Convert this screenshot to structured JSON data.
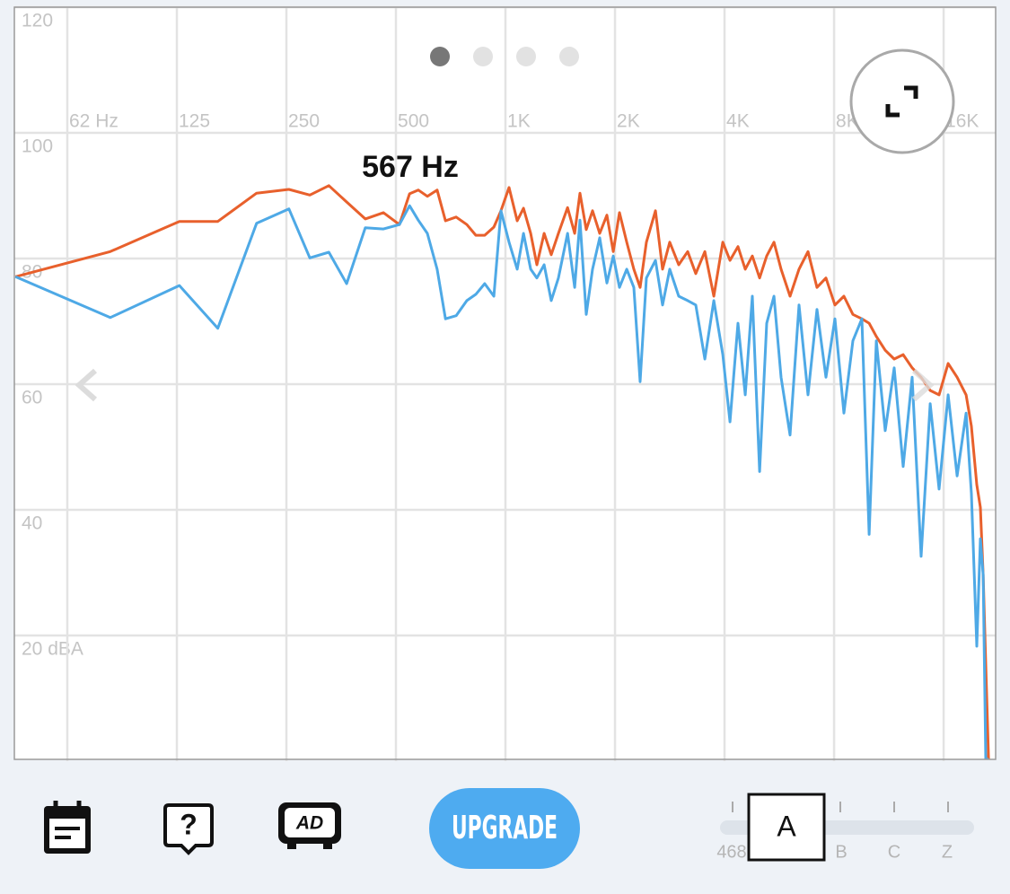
{
  "chart_data": {
    "type": "line",
    "annotation": "567 Hz",
    "xscale": "log",
    "xlim": [
      44.7,
      22238
    ],
    "ylim": [
      0,
      120
    ],
    "xticks": [
      {
        "value": 62.5,
        "label": "62 Hz"
      },
      125,
      250,
      500,
      {
        "value": 1000,
        "label": "1K"
      },
      {
        "value": 2000,
        "label": "2K"
      },
      {
        "value": 4000,
        "label": "4K"
      },
      {
        "value": 8000,
        "label": "8K"
      },
      {
        "value": 16000,
        "label": "16K"
      }
    ],
    "yticks": [
      {
        "value": 20,
        "label": "20 dBA"
      },
      40,
      60,
      80,
      100,
      120
    ],
    "grid": true,
    "x": [
      45,
      82,
      127,
      162,
      207,
      254,
      290,
      327,
      366,
      412,
      462,
      511,
      545,
      576,
      610,
      649,
      684,
      732,
      783,
      829,
      877,
      929,
      972,
      1023,
      1077,
      1121,
      1173,
      1220,
      1277,
      1336,
      1398,
      1481,
      1549,
      1602,
      1667,
      1735,
      1816,
      1900,
      1978,
      2057,
      2154,
      2253,
      2345,
      2440,
      2583,
      2702,
      2828,
      2994,
      3169,
      3335,
      3531,
      3737,
      3956,
      4139,
      4356,
      4559,
      4770,
      4993,
      5223,
      5468,
      5720,
      6055,
      6408,
      6783,
      7181,
      7600,
      8044,
      8513,
      9013,
      9538,
      9988,
      10450,
      11056,
      11706,
      12388,
      13113,
      13881,
      14694,
      15550,
      16463,
      17425,
      18444,
      19081,
      19738,
      20194,
      20544,
      20894,
      21256
    ],
    "series": [
      {
        "color": "#e8602c",
        "values": [
          77.1,
          81.1,
          85.9,
          85.9,
          90.4,
          91.0,
          90.1,
          91.6,
          89.0,
          86.3,
          87.3,
          85.4,
          90.3,
          90.9,
          89.9,
          90.9,
          86.0,
          86.6,
          85.4,
          83.7,
          83.7,
          85.0,
          87.6,
          91.3,
          86.0,
          88.0,
          84.0,
          79.0,
          84.0,
          80.6,
          84.0,
          88.1,
          84.0,
          90.4,
          84.6,
          87.6,
          84.0,
          86.9,
          81.1,
          87.3,
          82.6,
          78.3,
          75.4,
          82.6,
          87.6,
          78.3,
          82.6,
          79.0,
          81.1,
          77.6,
          81.1,
          74.0,
          82.6,
          79.7,
          81.9,
          78.3,
          80.4,
          76.9,
          80.4,
          82.6,
          78.3,
          74.0,
          78.3,
          81.1,
          75.4,
          76.9,
          72.6,
          74.0,
          71.1,
          70.4,
          69.7,
          67.6,
          65.4,
          64.0,
          64.7,
          62.6,
          61.1,
          59.0,
          58.3,
          63.3,
          61.1,
          58.3,
          53.3,
          44.0,
          40.4,
          29.7,
          15.4,
          0.3
        ]
      },
      {
        "color": "#4ea9e6",
        "values": [
          77.1,
          70.6,
          75.7,
          68.9,
          85.6,
          87.9,
          80.1,
          81.0,
          76.0,
          84.9,
          84.7,
          85.4,
          88.4,
          86.1,
          84.0,
          78.3,
          70.4,
          70.9,
          73.3,
          74.3,
          76.0,
          74.0,
          87.6,
          82.6,
          78.3,
          84.0,
          78.3,
          76.9,
          79.0,
          73.3,
          76.9,
          84.0,
          75.4,
          86.1,
          71.1,
          78.3,
          83.3,
          76.1,
          80.4,
          75.4,
          78.3,
          75.4,
          60.4,
          76.9,
          79.7,
          72.6,
          78.3,
          74.0,
          73.3,
          72.6,
          64.0,
          73.3,
          64.7,
          54.0,
          69.7,
          58.3,
          74.0,
          46.1,
          69.7,
          74.0,
          61.1,
          51.9,
          72.6,
          58.3,
          71.9,
          61.1,
          70.4,
          55.4,
          66.9,
          70.4,
          36.1,
          66.9,
          52.6,
          62.6,
          46.9,
          61.1,
          32.6,
          56.9,
          43.3,
          58.3,
          45.4,
          55.4,
          42.6,
          18.3,
          35.4,
          29.7,
          0.3,
          0.3
        ]
      }
    ]
  },
  "toolbar": {
    "help_icon": "?",
    "ad_icon": "AD",
    "upgrade": "UPGRADE",
    "level": "468",
    "weighting_selected": "A",
    "weightings": [
      "B",
      "C",
      "Z"
    ]
  }
}
